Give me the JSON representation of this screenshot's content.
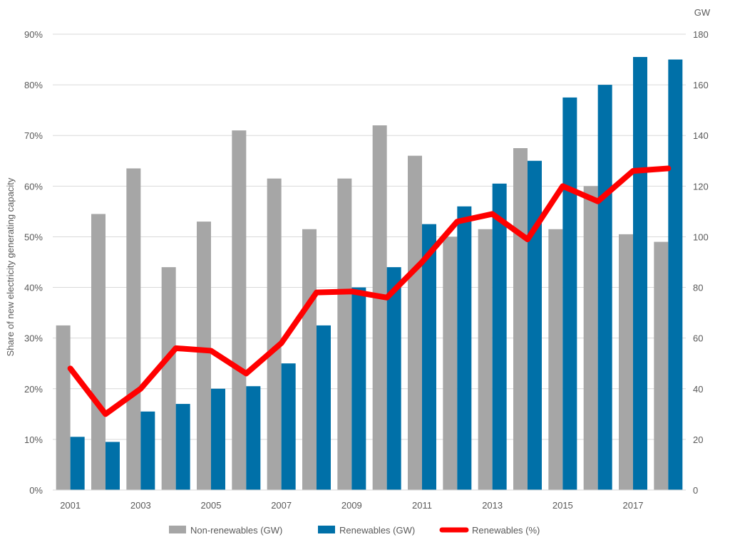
{
  "chart_data": {
    "type": "bar",
    "title": "",
    "ylabel": "Share of new electricity generating capacity",
    "y2label": "GW",
    "ylim": [
      0,
      90
    ],
    "y2lim": [
      0,
      180
    ],
    "yticks": [
      "0%",
      "10%",
      "20%",
      "30%",
      "40%",
      "50%",
      "60%",
      "70%",
      "80%",
      "90%"
    ],
    "y2ticks": [
      "0",
      "20",
      "40",
      "60",
      "80",
      "100",
      "120",
      "140",
      "160",
      "180"
    ],
    "categories": [
      2001,
      2002,
      2003,
      2004,
      2005,
      2006,
      2007,
      2008,
      2009,
      2010,
      2011,
      2012,
      2013,
      2014,
      2015,
      2016,
      2017,
      2018
    ],
    "x_tick_labels": [
      "2001",
      "2003",
      "2005",
      "2007",
      "2009",
      "2011",
      "2013",
      "2015",
      "2017"
    ],
    "grid": true,
    "legend_position": "bottom",
    "series": [
      {
        "name": "Non-renewables (GW)",
        "type": "bar",
        "axis": "right",
        "color": "#a6a6a6",
        "values": [
          65,
          109,
          127,
          88,
          106,
          142,
          123,
          103,
          123,
          144,
          132,
          100,
          103,
          135,
          103,
          120,
          101,
          98
        ]
      },
      {
        "name": "Renewables (GW)",
        "type": "bar",
        "axis": "right",
        "color": "#0070a8",
        "values": [
          21,
          19,
          31,
          34,
          40,
          41,
          50,
          65,
          80,
          88,
          105,
          112,
          121,
          130,
          155,
          160,
          171,
          170
        ]
      },
      {
        "name": "Renewables (%)",
        "type": "line",
        "axis": "left",
        "color": "#ff0000",
        "values": [
          24,
          15,
          20,
          28,
          27.5,
          23,
          29,
          39,
          39.2,
          38,
          45,
          53,
          54.5,
          49.5,
          60,
          57,
          63,
          63.5
        ]
      }
    ]
  }
}
